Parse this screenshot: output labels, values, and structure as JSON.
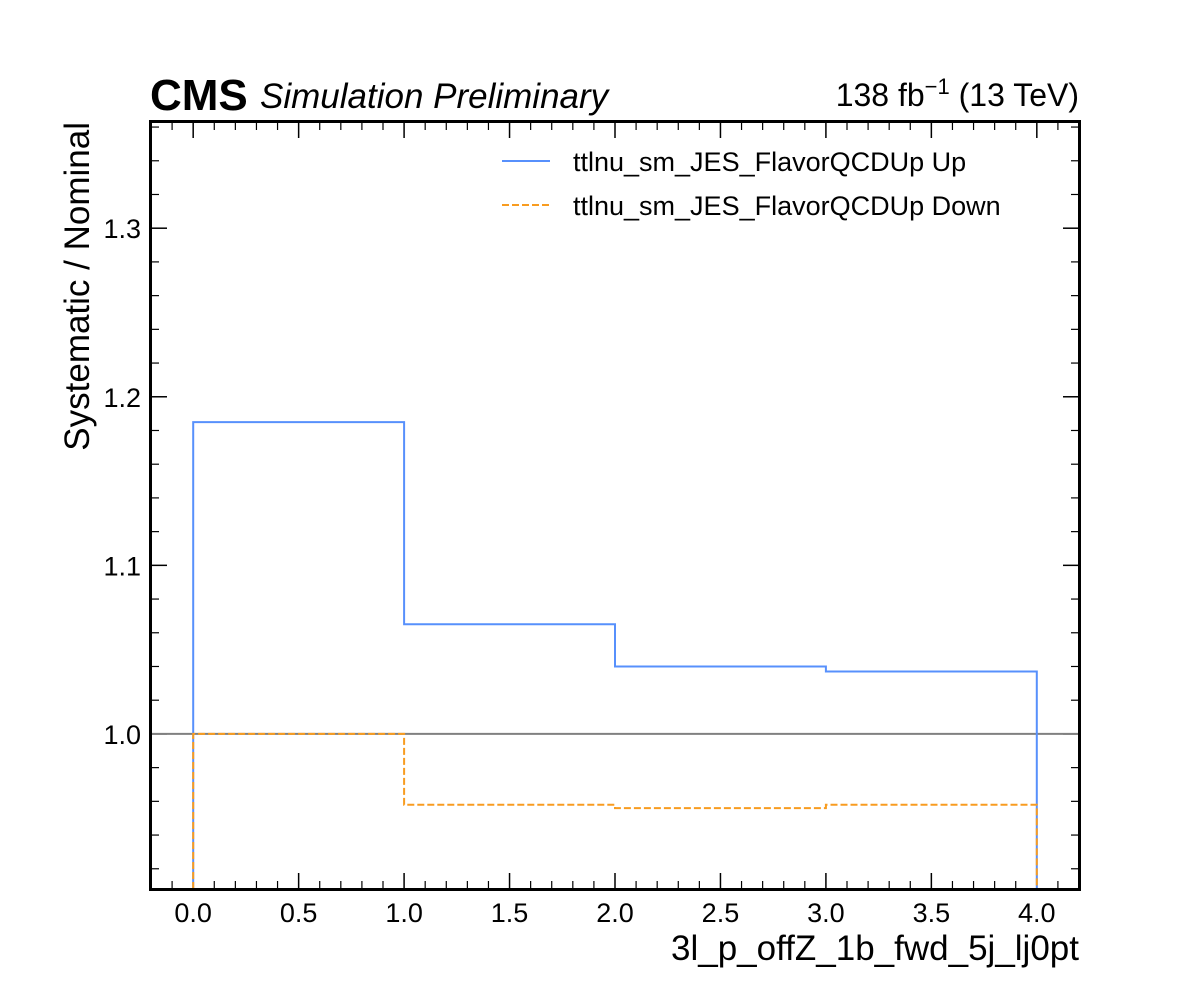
{
  "header": {
    "experiment": "CMS",
    "status": "Simulation Preliminary",
    "lumi_value": "138 fb",
    "lumi_exponent": "−1",
    "lumi_energy": " (13 TeV)"
  },
  "chart_data": {
    "type": "line",
    "style": "step-histogram",
    "xlabel": "3l_p_offZ_1b_fwd_5j_lj0pt",
    "ylabel": "Systematic / Nominal",
    "xlim": [
      -0.2,
      4.2
    ],
    "ylim": [
      0.908,
      1.363
    ],
    "x_ticks": [
      "0.0",
      "0.5",
      "1.0",
      "1.5",
      "2.0",
      "2.5",
      "3.0",
      "3.5",
      "4.0"
    ],
    "y_ticks": [
      "1.0",
      "1.1",
      "1.2",
      "1.3"
    ],
    "bin_edges": [
      0,
      1,
      2,
      3,
      4
    ],
    "reference_line": 1.0,
    "legend_position": "top-right",
    "series": [
      {
        "name": "ttlnu_sm_JES_FlavorQCDUp Up",
        "color": "#5790fc",
        "dashed": false,
        "values": [
          1.185,
          1.065,
          1.04,
          1.037
        ]
      },
      {
        "name": "ttlnu_sm_JES_FlavorQCDUp Down",
        "color": "#f89c20",
        "dashed": true,
        "values": [
          1.0,
          0.958,
          0.956,
          0.958
        ]
      }
    ]
  }
}
